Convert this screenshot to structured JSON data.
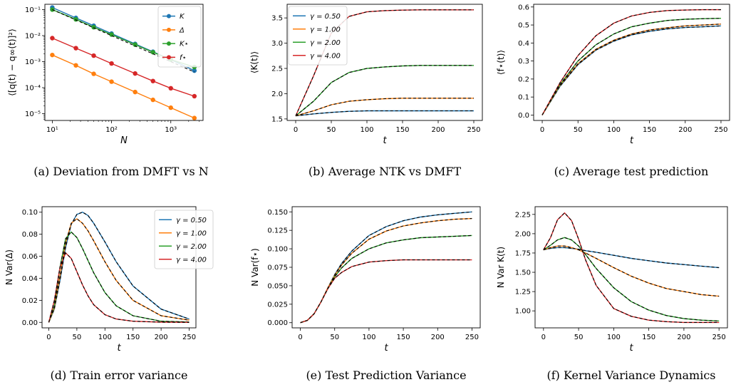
{
  "colors": {
    "blue": "#1f77b4",
    "orange": "#ff7f0e",
    "green": "#2ca02c",
    "red": "#d62728",
    "dashed": "#000000"
  },
  "chart_data": [
    {
      "type": "line",
      "caption": "(a) Deviation from DMFT vs N",
      "xlabel": "N",
      "ylabel": "⟨[q(t) − q∞(t)]²⟩",
      "xscale": "log",
      "yscale": "log",
      "xlim": [
        7.5,
        3500
      ],
      "ylim": [
        5.5e-06,
        0.16
      ],
      "xticks": [
        10,
        100,
        1000
      ],
      "xtick_labels": [
        "10¹",
        "10²",
        "10³"
      ],
      "yticks": [
        1e-05,
        0.0001,
        0.001,
        0.01,
        0.1
      ],
      "ytick_labels": [
        "10⁻⁵",
        "10⁻⁴",
        "10⁻³",
        "10⁻²",
        "10⁻¹"
      ],
      "x": [
        10,
        25,
        50,
        100,
        250,
        500,
        1000,
        2500
      ],
      "series": [
        {
          "name": "K",
          "color": "blue",
          "values": [
            0.12,
            0.048,
            0.024,
            0.012,
            0.0048,
            0.0024,
            0.0012,
            0.00045
          ]
        },
        {
          "name": "Δ",
          "color": "orange",
          "values": [
            0.0018,
            0.00072,
            0.00034,
            0.00017,
            6.8e-05,
            3.4e-05,
            1.7e-05,
            6.8e-06
          ]
        },
        {
          "name": "K⋆",
          "color": "green",
          "values": [
            0.1,
            0.042,
            0.021,
            0.011,
            0.0045,
            0.0023,
            0.0012,
            0.00062
          ]
        },
        {
          "name": "f⋆",
          "color": "red",
          "values": [
            0.008,
            0.0033,
            0.0017,
            0.00085,
            0.00035,
            0.00018,
            9.5e-05,
            4.7e-05
          ]
        }
      ],
      "reference": {
        "style": "dashed",
        "x": [
          10,
          2500
        ],
        "values": [
          0.1,
          0.0004
        ]
      },
      "legend": "top-right"
    },
    {
      "type": "line",
      "caption": "(b) Average NTK vs DMFT",
      "xlabel": "t",
      "ylabel": "⟨K(t)⟩",
      "xlim": [
        -12,
        262
      ],
      "ylim": [
        1.47,
        3.77
      ],
      "xticks": [
        0,
        50,
        100,
        150,
        200,
        250
      ],
      "yticks": [
        1.5,
        2.0,
        2.5,
        3.0,
        3.5
      ],
      "ytick_labels": [
        "1.5",
        "2.0",
        "2.5",
        "3.0",
        "3.5"
      ],
      "x": [
        0,
        25,
        50,
        75,
        100,
        125,
        150,
        175,
        200,
        225,
        250
      ],
      "series": [
        {
          "name": "γ = 0.50",
          "color": "blue",
          "values": [
            1.56,
            1.6,
            1.63,
            1.65,
            1.66,
            1.66,
            1.66,
            1.66,
            1.66,
            1.66,
            1.66
          ]
        },
        {
          "name": "γ = 1.00",
          "color": "orange",
          "values": [
            1.56,
            1.66,
            1.78,
            1.85,
            1.88,
            1.9,
            1.91,
            1.91,
            1.91,
            1.91,
            1.91
          ]
        },
        {
          "name": "γ = 2.00",
          "color": "green",
          "values": [
            1.56,
            1.85,
            2.22,
            2.42,
            2.5,
            2.53,
            2.55,
            2.56,
            2.56,
            2.56,
            2.56
          ]
        },
        {
          "name": "γ = 4.00",
          "color": "red",
          "values": [
            1.56,
            2.35,
            3.2,
            3.53,
            3.62,
            3.645,
            3.655,
            3.66,
            3.66,
            3.66,
            3.66
          ]
        }
      ],
      "legend": "top-left"
    },
    {
      "type": "line",
      "caption": "(c) Average test prediction",
      "xlabel": "t",
      "ylabel": "⟨f⋆(t)⟩",
      "xlim": [
        -12,
        262
      ],
      "ylim": [
        -0.03,
        0.615
      ],
      "xticks": [
        0,
        50,
        100,
        150,
        200,
        250
      ],
      "yticks": [
        0,
        0.1,
        0.2,
        0.3,
        0.4,
        0.5,
        0.6
      ],
      "ytick_labels": [
        "0.0",
        "0.1",
        "0.2",
        "0.3",
        "0.4",
        "0.5",
        "0.6"
      ],
      "x": [
        0,
        25,
        50,
        75,
        100,
        125,
        150,
        175,
        200,
        225,
        250
      ],
      "series": [
        {
          "name": "γ = 0.50",
          "color": "blue",
          "values": [
            0,
            0.16,
            0.28,
            0.36,
            0.41,
            0.445,
            0.465,
            0.478,
            0.486,
            0.49,
            0.495
          ]
        },
        {
          "name": "γ = 1.00",
          "color": "orange",
          "values": [
            0,
            0.165,
            0.285,
            0.365,
            0.415,
            0.45,
            0.472,
            0.485,
            0.495,
            0.5,
            0.505
          ]
        },
        {
          "name": "γ = 2.00",
          "color": "green",
          "values": [
            0,
            0.17,
            0.3,
            0.39,
            0.45,
            0.49,
            0.51,
            0.525,
            0.532,
            0.535,
            0.537
          ]
        },
        {
          "name": "γ = 4.00",
          "color": "red",
          "values": [
            0,
            0.18,
            0.33,
            0.44,
            0.51,
            0.55,
            0.57,
            0.58,
            0.583,
            0.585,
            0.585
          ]
        }
      ],
      "legend": "none"
    },
    {
      "type": "line",
      "caption": "(d) Train error variance",
      "xlabel": "t",
      "ylabel": "N Var(Δ)",
      "xlim": [
        -12,
        262
      ],
      "ylim": [
        -0.005,
        0.105
      ],
      "xticks": [
        0,
        50,
        100,
        150,
        200,
        250
      ],
      "yticks": [
        0,
        0.02,
        0.04,
        0.06,
        0.08,
        0.1
      ],
      "ytick_labels": [
        "0.00",
        "0.02",
        "0.04",
        "0.06",
        "0.08",
        "0.10"
      ],
      "x": [
        0,
        10,
        20,
        30,
        40,
        50,
        60,
        70,
        80,
        100,
        120,
        150,
        200,
        250
      ],
      "series": [
        {
          "name": "γ = 0.50",
          "color": "blue",
          "values": [
            0,
            0.012,
            0.038,
            0.068,
            0.089,
            0.098,
            0.1,
            0.097,
            0.09,
            0.073,
            0.055,
            0.033,
            0.012,
            0.003
          ]
        },
        {
          "name": "γ = 1.00",
          "color": "orange",
          "values": [
            0,
            0.013,
            0.042,
            0.072,
            0.09,
            0.094,
            0.09,
            0.083,
            0.074,
            0.055,
            0.038,
            0.02,
            0.006,
            0.002
          ]
        },
        {
          "name": "γ = 2.00",
          "color": "green",
          "values": [
            0,
            0.015,
            0.05,
            0.076,
            0.082,
            0.077,
            0.067,
            0.056,
            0.045,
            0.027,
            0.015,
            0.006,
            0.001,
            0.0003
          ]
        },
        {
          "name": "γ = 4.00",
          "color": "red",
          "values": [
            0,
            0.02,
            0.05,
            0.063,
            0.058,
            0.046,
            0.034,
            0.024,
            0.016,
            0.007,
            0.003,
            0.001,
            0.0002,
            0
          ]
        }
      ],
      "legend": "top-right"
    },
    {
      "type": "line",
      "caption": "(e) Test Prediction Variance",
      "xlabel": "t",
      "ylabel": "N Var(f⋆)",
      "xlim": [
        -12,
        262
      ],
      "ylim": [
        -0.007,
        0.157
      ],
      "xticks": [
        0,
        50,
        100,
        150,
        200,
        250
      ],
      "yticks": [
        0,
        0.025,
        0.05,
        0.075,
        0.1,
        0.125,
        0.15
      ],
      "ytick_labels": [
        "0.000",
        "0.025",
        "0.050",
        "0.075",
        "0.100",
        "0.125",
        "0.150"
      ],
      "x": [
        0,
        10,
        20,
        30,
        40,
        50,
        60,
        75,
        100,
        125,
        150,
        175,
        200,
        225,
        250
      ],
      "series": [
        {
          "name": "γ = 0.50",
          "color": "blue",
          "values": [
            0,
            0.003,
            0.012,
            0.028,
            0.047,
            0.065,
            0.08,
            0.097,
            0.118,
            0.13,
            0.138,
            0.143,
            0.146,
            0.148,
            0.15
          ]
        },
        {
          "name": "γ = 1.00",
          "color": "orange",
          "values": [
            0,
            0.003,
            0.012,
            0.028,
            0.047,
            0.064,
            0.078,
            0.094,
            0.113,
            0.124,
            0.131,
            0.135,
            0.138,
            0.14,
            0.141
          ]
        },
        {
          "name": "γ = 2.00",
          "color": "green",
          "values": [
            0,
            0.003,
            0.012,
            0.028,
            0.046,
            0.062,
            0.074,
            0.087,
            0.1,
            0.108,
            0.112,
            0.115,
            0.116,
            0.117,
            0.118
          ]
        },
        {
          "name": "γ = 4.00",
          "color": "red",
          "values": [
            0,
            0.003,
            0.012,
            0.028,
            0.046,
            0.06,
            0.068,
            0.076,
            0.082,
            0.084,
            0.085,
            0.085,
            0.085,
            0.085,
            0.085
          ]
        }
      ],
      "legend": "none"
    },
    {
      "type": "line",
      "caption": "(f) Kernel Variance Dynamics",
      "xlabel": "t",
      "ylabel": "N Var K(t)",
      "xlim": [
        -12,
        262
      ],
      "ylim": [
        0.78,
        2.35
      ],
      "xticks": [
        0,
        50,
        100,
        150,
        200,
        250
      ],
      "yticks": [
        1.0,
        1.25,
        1.5,
        1.75,
        2.0,
        2.25
      ],
      "ytick_labels": [
        "1.00",
        "1.25",
        "1.50",
        "1.75",
        "2.00",
        "2.25"
      ],
      "x": [
        0,
        10,
        20,
        30,
        40,
        50,
        60,
        75,
        100,
        125,
        150,
        175,
        200,
        225,
        250
      ],
      "series": [
        {
          "name": "γ = 0.50",
          "color": "blue",
          "values": [
            1.79,
            1.81,
            1.82,
            1.82,
            1.81,
            1.8,
            1.78,
            1.76,
            1.72,
            1.68,
            1.65,
            1.62,
            1.6,
            1.58,
            1.56
          ]
        },
        {
          "name": "γ = 1.00",
          "color": "orange",
          "values": [
            1.79,
            1.82,
            1.84,
            1.84,
            1.82,
            1.79,
            1.75,
            1.68,
            1.56,
            1.45,
            1.36,
            1.29,
            1.25,
            1.21,
            1.19
          ]
        },
        {
          "name": "γ = 2.00",
          "color": "green",
          "values": [
            1.79,
            1.85,
            1.92,
            1.95,
            1.92,
            1.84,
            1.73,
            1.55,
            1.3,
            1.12,
            1.01,
            0.94,
            0.9,
            0.88,
            0.87
          ]
        },
        {
          "name": "γ = 4.00",
          "color": "red",
          "values": [
            1.79,
            1.95,
            2.18,
            2.27,
            2.17,
            1.93,
            1.66,
            1.33,
            1.03,
            0.93,
            0.88,
            0.86,
            0.85,
            0.85,
            0.85
          ]
        }
      ],
      "legend": "none"
    }
  ]
}
